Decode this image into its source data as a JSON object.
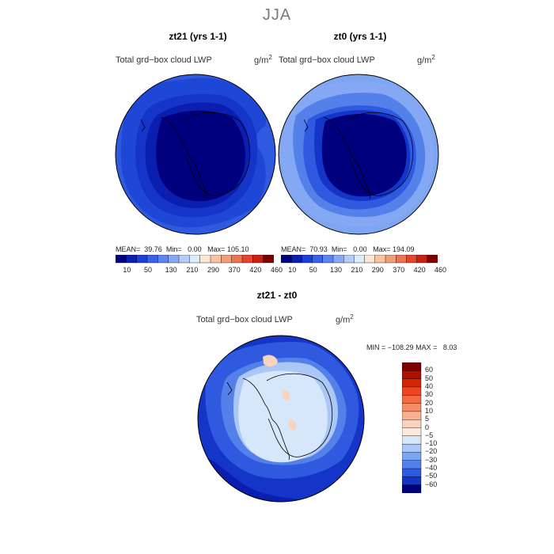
{
  "title": "JJA",
  "panels": [
    {
      "title": "zt21 (yrs 1-1)",
      "variable": "Total grd−box cloud LWP",
      "units": "g/m",
      "units_exp": "2",
      "stats": {
        "mean_label": "MEAN=",
        "mean": "39.76",
        "min_label": "Min=",
        "min": "0.00",
        "max_label": "Max=",
        "max": "105.10"
      }
    },
    {
      "title": "zt0 (yrs 1-1)",
      "variable": "Total grd−box cloud LWP",
      "units": "g/m",
      "units_exp": "2",
      "stats": {
        "mean_label": "MEAN=",
        "mean": "70.93",
        "min_label": "Min=",
        "min": "0.00",
        "max_label": "Max=",
        "max": "194.09"
      }
    }
  ],
  "diff_panel": {
    "title": "zt21 - zt0",
    "variable": "Total grd−box cloud LWP",
    "units": "g/m",
    "units_exp": "2",
    "stats": {
      "min_label": "MIN =",
      "min": "−108.29",
      "max_label": "MAX =",
      "max": "8.03"
    }
  },
  "colorbar_top": {
    "labels": [
      "10",
      "50",
      "130",
      "210",
      "290",
      "370",
      "420",
      "460"
    ],
    "colors": [
      "#00007f",
      "#0a1fb0",
      "#1c3fd8",
      "#3a62e8",
      "#5d85f0",
      "#88a9f5",
      "#b6cbf8",
      "#deebfb",
      "#fde6d6",
      "#f8c2a4",
      "#f29e78",
      "#ec7550",
      "#e5452a",
      "#cc2010",
      "#7f0000"
    ]
  },
  "colorbar_diff": {
    "labels": [
      "60",
      "50",
      "40",
      "30",
      "20",
      "10",
      "5",
      "0",
      "−5",
      "−10",
      "−20",
      "−30",
      "−40",
      "−50",
      "−60"
    ],
    "colors": [
      "#7f0000",
      "#b00f00",
      "#d42400",
      "#ec4520",
      "#f26b44",
      "#f48c68",
      "#f8b090",
      "#fbd2bc",
      "#fde9dc",
      "#d6e6fb",
      "#aac7f6",
      "#7ea5f0",
      "#5480ea",
      "#2f5ae0",
      "#1435c8",
      "#00007f"
    ]
  },
  "colors": {
    "map_border": "#000000",
    "coast": "#000000"
  }
}
